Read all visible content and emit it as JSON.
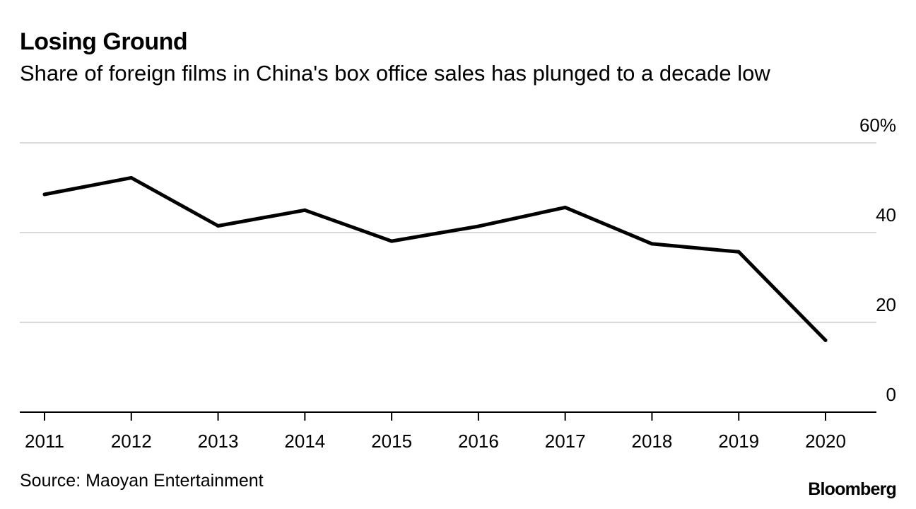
{
  "header": {
    "title": "Losing Ground",
    "subtitle": "Share of foreign films in China's box office sales has plunged to a decade low"
  },
  "footer": {
    "source": "Source: Maoyan Entertainment",
    "brand": "Bloomberg"
  },
  "colors": {
    "line": "#000000",
    "grid": "#d9d9d9",
    "axis": "#000000",
    "text": "#000000"
  },
  "chart_data": {
    "type": "line",
    "title": "Losing Ground",
    "subtitle": "Share of foreign films in China's box office sales has plunged to a decade low",
    "xlabel": "",
    "ylabel": "",
    "x": [
      "2011",
      "2012",
      "2013",
      "2014",
      "2015",
      "2016",
      "2017",
      "2018",
      "2019",
      "2020"
    ],
    "series": [
      {
        "name": "Foreign films share of box office",
        "values": [
          48.5,
          52.2,
          41.5,
          45.0,
          38.1,
          41.4,
          45.6,
          37.5,
          35.7,
          16.0
        ]
      }
    ],
    "ylim": [
      0,
      60
    ],
    "yticks": [
      0,
      20,
      40,
      60
    ],
    "ytick_labels": [
      "0",
      "20",
      "40",
      "60%"
    ],
    "y_axis_side": "right",
    "grid": true,
    "legend": "none"
  }
}
